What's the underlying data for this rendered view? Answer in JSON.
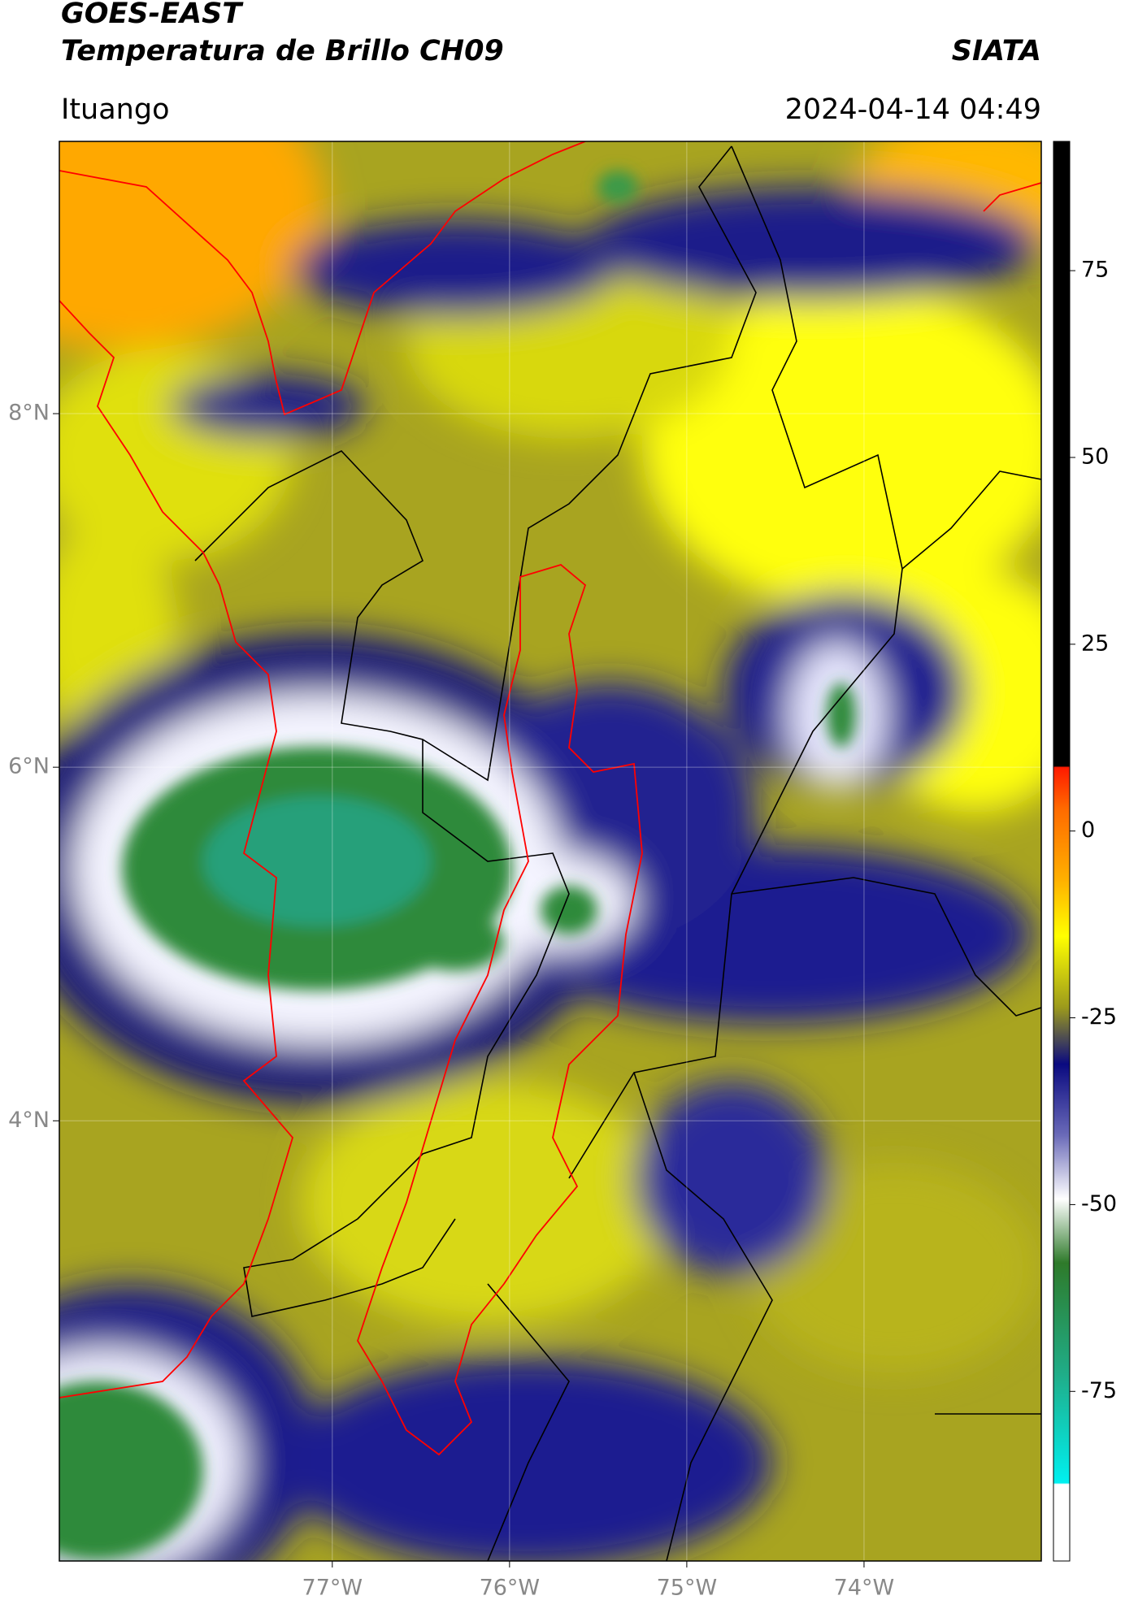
{
  "header": {
    "title": "GOES-EAST",
    "subtitle": "Temperatura de Brillo CH09",
    "source": "SIATA",
    "location": "Ituango",
    "datetime": "2024-04-14 04:49"
  },
  "map": {
    "lonlim": [
      -78.54,
      -73.0
    ],
    "latlim": [
      1.51,
      9.54
    ],
    "lonticks": [
      {
        "value": -77,
        "label": "77°W"
      },
      {
        "value": -76,
        "label": "76°W"
      },
      {
        "value": -75,
        "label": "75°W"
      },
      {
        "value": -74,
        "label": "74°W"
      }
    ],
    "latticks": [
      {
        "value": 8,
        "label": "8°N"
      },
      {
        "value": 6,
        "label": "6°N"
      },
      {
        "value": 4,
        "label": "4°N"
      }
    ]
  },
  "colorbar": {
    "lim": [
      -97.7,
      92.3
    ],
    "ticks": [
      75,
      50,
      25,
      0,
      -25,
      -50,
      -75
    ]
  }
}
